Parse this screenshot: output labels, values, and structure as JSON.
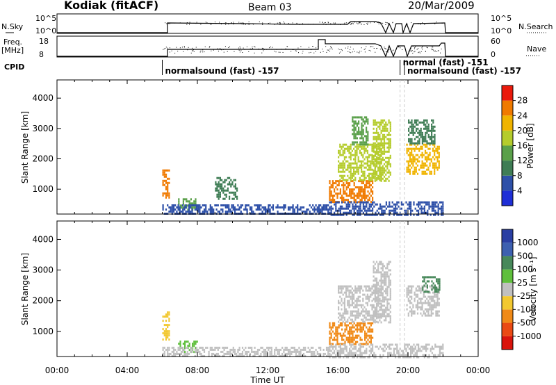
{
  "header": {
    "station": "Kodiak (fitACF)",
    "beam": "Beam 03",
    "date": "20/Mar/2009"
  },
  "top_strips": {
    "nsky_label": "N.Sky",
    "nsky_tick_hi": "10^5",
    "nsky_tick_lo": "10^0",
    "nsearch_label": "N.Search",
    "freq_label_line1": "Freq.",
    "freq_label_line2": "[MHz]",
    "freq_tick_hi": "18",
    "freq_tick_lo": "8",
    "nave_label": "Nave",
    "nave_tick_hi": "60",
    "nave_tick_lo": "0",
    "cpid_label": "CPID"
  },
  "cpid_segments": [
    {
      "start_h": 6.0,
      "text": "normalsound (fast) -157"
    },
    {
      "start_h": 19.55,
      "text": "normal (fast) -151"
    },
    {
      "start_h": 19.8,
      "text": "normalsound (fast) -157"
    }
  ],
  "colors": {
    "power": [
      "#1f2fd6",
      "#2e50a8",
      "#3f7d55",
      "#5aa04a",
      "#b5cc2c",
      "#f0b400",
      "#f07a00",
      "#ea1a0c"
    ],
    "velocity": [
      "#2a3fa3",
      "#3d60b0",
      "#47885a",
      "#5fbf3c",
      "#c0c0c0",
      "#f2c830",
      "#f08a18",
      "#ea4a14",
      "#d9140c"
    ]
  },
  "chart_data": [
    {
      "type": "heatmap",
      "name": "power",
      "xlabel": "Time UT",
      "ylabel": "Slant Range [km]",
      "x_ticks": [
        "00:00",
        "04:00",
        "08:00",
        "12:00",
        "16:00",
        "20:00",
        "00:00"
      ],
      "xlim": [
        0,
        24
      ],
      "y_ticks": [
        1000,
        2000,
        3000,
        4000
      ],
      "ylim": [
        180,
        4600
      ],
      "colorbar": {
        "label": "Power [dB]",
        "range": [
          0,
          32
        ],
        "ticks": [
          4,
          8,
          12,
          16,
          20,
          24,
          28
        ]
      },
      "regions": [
        {
          "t": [
            6.0,
            6.35
          ],
          "r": [
            750,
            1650
          ],
          "v": 26
        },
        {
          "t": [
            6.9,
            8.0
          ],
          "r": [
            350,
            700
          ],
          "v": 12
        },
        {
          "t": [
            6.0,
            15.5
          ],
          "r": [
            180,
            500
          ],
          "v": 6
        },
        {
          "t": [
            9.0,
            10.3
          ],
          "r": [
            700,
            1400
          ],
          "v": 8
        },
        {
          "t": [
            15.5,
            18.0
          ],
          "r": [
            600,
            1300
          ],
          "v": 27
        },
        {
          "t": [
            16.0,
            18.5
          ],
          "r": [
            1300,
            2500
          ],
          "v": 18
        },
        {
          "t": [
            16.8,
            17.7
          ],
          "r": [
            2500,
            3400
          ],
          "v": 14
        },
        {
          "t": [
            18.0,
            19.0
          ],
          "r": [
            1300,
            3300
          ],
          "v": 16
        },
        {
          "t": [
            19.9,
            21.8
          ],
          "r": [
            1500,
            2500
          ],
          "v": 20
        },
        {
          "t": [
            20.0,
            21.5
          ],
          "r": [
            2500,
            3300
          ],
          "v": 10
        },
        {
          "t": [
            15.5,
            22.0
          ],
          "r": [
            180,
            600
          ],
          "v": 6
        }
      ]
    },
    {
      "type": "heatmap",
      "name": "velocity",
      "xlabel": "Time UT",
      "ylabel": "Slant Range [km]",
      "x_ticks": [
        "00:00",
        "04:00",
        "08:00",
        "12:00",
        "16:00",
        "20:00",
        "00:00"
      ],
      "xlim": [
        0,
        24
      ],
      "y_ticks": [
        1000,
        2000,
        3000,
        4000
      ],
      "ylim": [
        180,
        4600
      ],
      "colorbar": {
        "label": "Velocity [m s⁻¹]",
        "ticks": [
          "1000",
          "500",
          "100",
          "25",
          "-25",
          "-100",
          "-500",
          "-1000"
        ]
      },
      "regions": [
        {
          "t": [
            6.0,
            6.35
          ],
          "r": [
            750,
            1650
          ],
          "v": 5
        },
        {
          "t": [
            6.9,
            8.0
          ],
          "r": [
            350,
            700
          ],
          "v": 3
        },
        {
          "t": [
            6.0,
            15.5
          ],
          "r": [
            180,
            500
          ],
          "v": 4
        },
        {
          "t": [
            15.5,
            18.0
          ],
          "r": [
            600,
            1300
          ],
          "v": 6
        },
        {
          "t": [
            16.0,
            18.5
          ],
          "r": [
            1300,
            2500
          ],
          "v": 4
        },
        {
          "t": [
            18.0,
            19.0
          ],
          "r": [
            1300,
            3300
          ],
          "v": 4
        },
        {
          "t": [
            19.9,
            21.8
          ],
          "r": [
            1500,
            2500
          ],
          "v": 4
        },
        {
          "t": [
            20.8,
            21.8
          ],
          "r": [
            2300,
            2800
          ],
          "v": 2
        },
        {
          "t": [
            15.5,
            22.0
          ],
          "r": [
            180,
            600
          ],
          "v": 4
        }
      ]
    }
  ]
}
